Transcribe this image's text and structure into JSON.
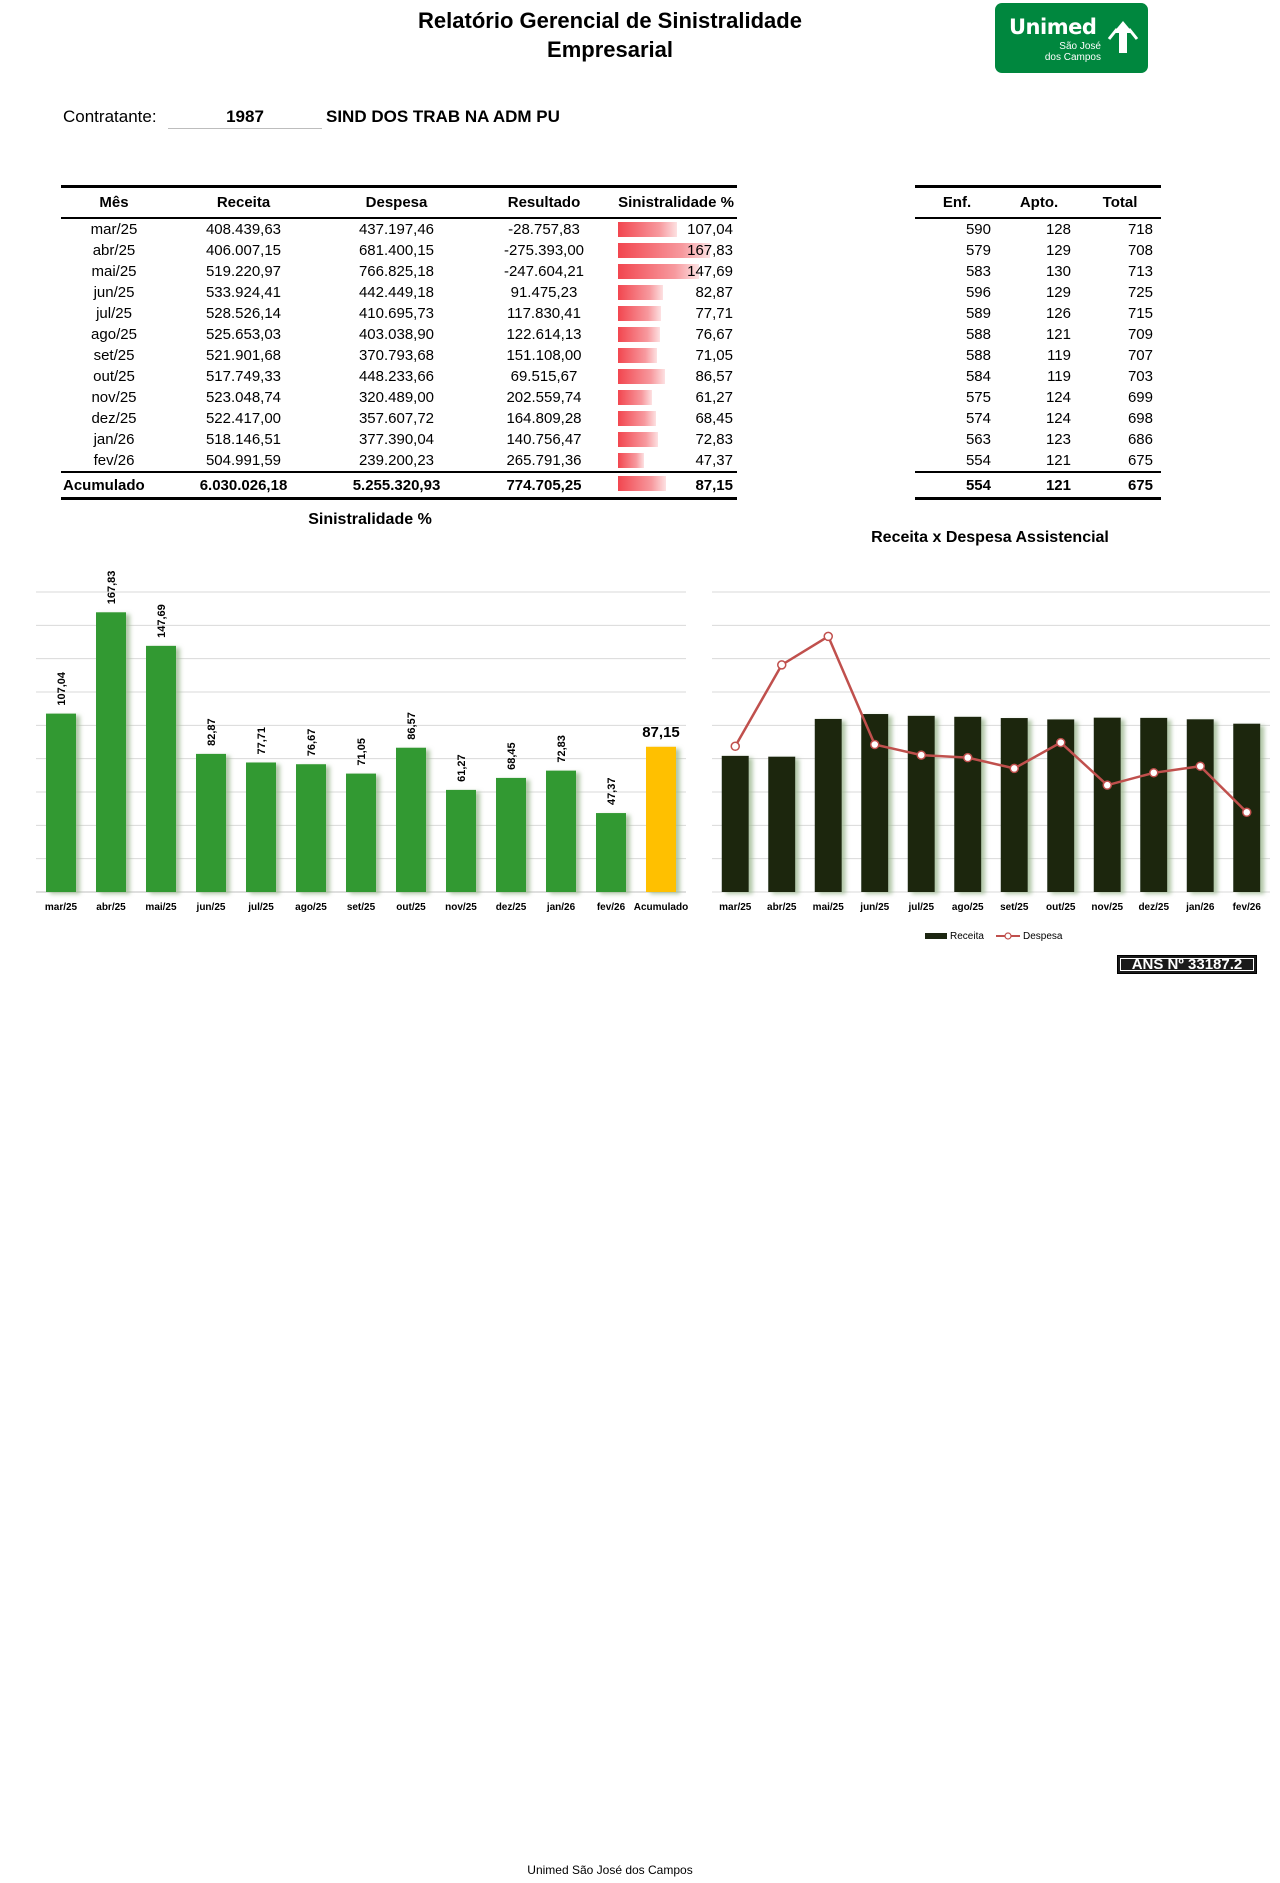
{
  "header": {
    "title_line1": "Relatório Gerencial de Sinistralidade",
    "title_line2": "Empresarial",
    "logo_brand": "Unimed",
    "logo_sub1": "São José",
    "logo_sub2": "dos Campos"
  },
  "contract": {
    "label": "Contratante:",
    "code": "1987",
    "name": "SIND DOS TRAB NA ADM PU"
  },
  "main_table": {
    "headers": [
      "Mês",
      "Receita",
      "Despesa",
      "Resultado",
      "Sinistralidade %"
    ],
    "rows": [
      {
        "mes": "mar/25",
        "receita": "408.439,63",
        "despesa": "437.197,46",
        "resultado": "-28.757,83",
        "sin": "107,04",
        "sin_num": 107.04
      },
      {
        "mes": "abr/25",
        "receita": "406.007,15",
        "despesa": "681.400,15",
        "resultado": "-275.393,00",
        "sin": "167,83",
        "sin_num": 167.83
      },
      {
        "mes": "mai/25",
        "receita": "519.220,97",
        "despesa": "766.825,18",
        "resultado": "-247.604,21",
        "sin": "147,69",
        "sin_num": 147.69
      },
      {
        "mes": "jun/25",
        "receita": "533.924,41",
        "despesa": "442.449,18",
        "resultado": "91.475,23",
        "sin": "82,87",
        "sin_num": 82.87
      },
      {
        "mes": "jul/25",
        "receita": "528.526,14",
        "despesa": "410.695,73",
        "resultado": "117.830,41",
        "sin": "77,71",
        "sin_num": 77.71
      },
      {
        "mes": "ago/25",
        "receita": "525.653,03",
        "despesa": "403.038,90",
        "resultado": "122.614,13",
        "sin": "76,67",
        "sin_num": 76.67
      },
      {
        "mes": "set/25",
        "receita": "521.901,68",
        "despesa": "370.793,68",
        "resultado": "151.108,00",
        "sin": "71,05",
        "sin_num": 71.05
      },
      {
        "mes": "out/25",
        "receita": "517.749,33",
        "despesa": "448.233,66",
        "resultado": "69.515,67",
        "sin": "86,57",
        "sin_num": 86.57
      },
      {
        "mes": "nov/25",
        "receita": "523.048,74",
        "despesa": "320.489,00",
        "resultado": "202.559,74",
        "sin": "61,27",
        "sin_num": 61.27
      },
      {
        "mes": "dez/25",
        "receita": "522.417,00",
        "despesa": "357.607,72",
        "resultado": "164.809,28",
        "sin": "68,45",
        "sin_num": 68.45
      },
      {
        "mes": "jan/26",
        "receita": "518.146,51",
        "despesa": "377.390,04",
        "resultado": "140.756,47",
        "sin": "72,83",
        "sin_num": 72.83
      },
      {
        "mes": "fev/26",
        "receita": "504.991,59",
        "despesa": "239.200,23",
        "resultado": "265.791,36",
        "sin": "47,37",
        "sin_num": 47.37
      }
    ],
    "total": {
      "mes": "Acumulado",
      "receita": "6.030.026,18",
      "despesa": "5.255.320,93",
      "resultado": "774.705,25",
      "sin": "87,15",
      "sin_num": 87.15
    }
  },
  "side_table": {
    "headers": [
      "Enf.",
      "Apto.",
      "Total"
    ],
    "rows": [
      {
        "enf": "590",
        "apto": "128",
        "total": "718"
      },
      {
        "enf": "579",
        "apto": "129",
        "total": "708"
      },
      {
        "enf": "583",
        "apto": "130",
        "total": "713"
      },
      {
        "enf": "596",
        "apto": "129",
        "total": "725"
      },
      {
        "enf": "589",
        "apto": "126",
        "total": "715"
      },
      {
        "enf": "588",
        "apto": "121",
        "total": "709"
      },
      {
        "enf": "588",
        "apto": "119",
        "total": "707"
      },
      {
        "enf": "584",
        "apto": "119",
        "total": "703"
      },
      {
        "enf": "575",
        "apto": "124",
        "total": "699"
      },
      {
        "enf": "574",
        "apto": "124",
        "total": "698"
      },
      {
        "enf": "563",
        "apto": "123",
        "total": "686"
      },
      {
        "enf": "554",
        "apto": "121",
        "total": "675"
      }
    ],
    "total": {
      "enf": "554",
      "apto": "121",
      "total": "675"
    }
  },
  "chart_data": [
    {
      "type": "bar",
      "title": "Sinistralidade %",
      "categories": [
        "mar/25",
        "abr/25",
        "mai/25",
        "jun/25",
        "jul/25",
        "ago/25",
        "set/25",
        "out/25",
        "nov/25",
        "dez/25",
        "jan/26",
        "fev/26",
        "Acumulado"
      ],
      "values": [
        107.04,
        167.83,
        147.69,
        82.87,
        77.71,
        76.67,
        71.05,
        86.57,
        61.27,
        68.45,
        72.83,
        47.37,
        87.15
      ],
      "labels": [
        "107,04",
        "167,83",
        "147,69",
        "82,87",
        "77,71",
        "76,67",
        "71,05",
        "86,57",
        "61,27",
        "68,45",
        "72,83",
        "47,37",
        "87,15"
      ],
      "ylim": [
        0,
        180
      ],
      "grid": true,
      "colors": {
        "bar": "#339933",
        "highlight": "#ffc000"
      }
    },
    {
      "type": "bar",
      "title": "Receita x Despesa Assistencial",
      "categories": [
        "mar/25",
        "abr/25",
        "mai/25",
        "jun/25",
        "jul/25",
        "ago/25",
        "set/25",
        "out/25",
        "nov/25",
        "dez/25",
        "jan/26",
        "fev/26"
      ],
      "series": [
        {
          "name": "Receita",
          "type": "bar",
          "values": [
            408439.63,
            406007.15,
            519220.97,
            533924.41,
            528526.14,
            525653.03,
            521901.68,
            517749.33,
            523048.74,
            522417.0,
            518146.51,
            504991.59
          ],
          "color": "#1c2611"
        },
        {
          "name": "Despesa",
          "type": "line",
          "values": [
            437197.46,
            681400.15,
            766825.18,
            442449.18,
            410695.73,
            403038.9,
            370793.68,
            448233.66,
            320489.0,
            357607.72,
            377390.04,
            239200.23
          ],
          "color": "#c0504d"
        }
      ],
      "ylim": [
        0,
        900000
      ],
      "grid": true,
      "legend": "bottom"
    }
  ],
  "badge": "ANS Nº 33187.2",
  "footer": "Unimed São José dos Campos"
}
